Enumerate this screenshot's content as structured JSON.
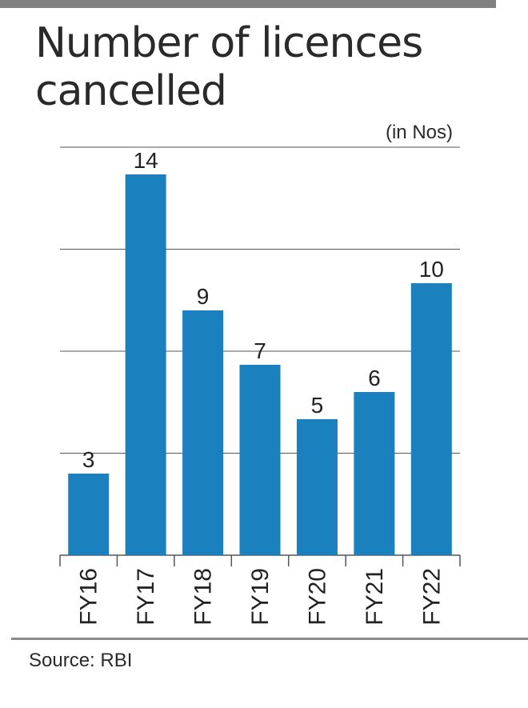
{
  "title": "Number of licences cancelled",
  "unit": "(in Nos)",
  "source": "Source: RBI",
  "colors": {
    "bar": "#1a80be",
    "grid": "#555555",
    "text": "#222222"
  },
  "chart_data": {
    "type": "bar",
    "categories": [
      "FY16",
      "FY17",
      "FY18",
      "FY19",
      "FY20",
      "FY21",
      "FY22"
    ],
    "values": [
      3,
      14,
      9,
      7,
      5,
      6,
      10
    ],
    "ylim": [
      0,
      15
    ],
    "gridlines": [
      3.75,
      7.5,
      11.25,
      15
    ],
    "grid": true,
    "legend": "none"
  }
}
